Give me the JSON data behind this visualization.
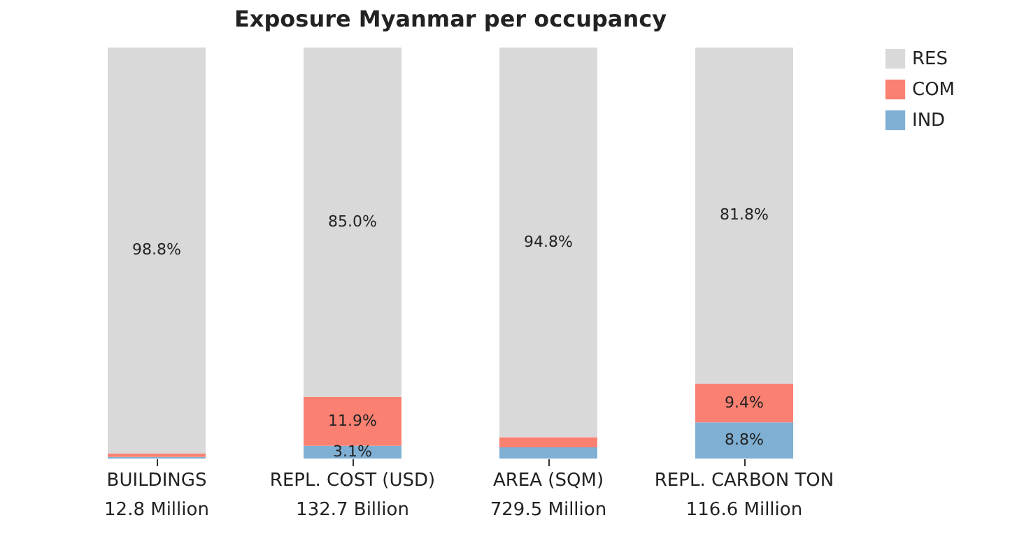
{
  "chart_data": {
    "type": "bar",
    "title": "Exposure Myanmar per occupancy",
    "stacked": true,
    "categories": [
      "BUILDINGS\n12.8 Million",
      "REPL. COST (USD)\n132.7 Billion",
      "AREA (SQM)\n729.5 Million",
      "REPL. CARBON TON\n116.6 Million"
    ],
    "series": [
      {
        "name": "IND",
        "color": "#7fb0d4",
        "values": [
          0.4,
          3.1,
          2.7,
          8.8
        ],
        "value_labels": [
          null,
          "3.1%",
          null,
          "8.8%"
        ]
      },
      {
        "name": "COM",
        "color": "#fa8072",
        "values": [
          0.8,
          11.9,
          2.5,
          9.4
        ],
        "value_labels": [
          null,
          "11.9%",
          null,
          "9.4%"
        ]
      },
      {
        "name": "RES",
        "color": "#d9d9d9",
        "values": [
          98.8,
          85.0,
          94.8,
          81.8
        ],
        "value_labels": [
          "98.8%",
          "85.0%",
          "94.8%",
          "81.8%"
        ]
      }
    ],
    "legend": "top right",
    "grid": false
  }
}
